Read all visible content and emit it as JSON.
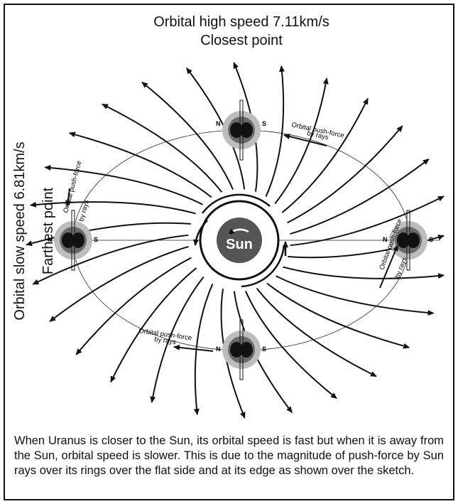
{
  "title": {
    "line1": "Orbital high speed 7.11km/s",
    "line2": "Closest point"
  },
  "side": {
    "line1": "Orbital slow speed 6.81km/s",
    "line2": "Farthest point"
  },
  "sun": "Sun",
  "planets": [
    {
      "n": "N",
      "s": "S"
    },
    {
      "n": "N",
      "s": "S"
    },
    {
      "n": "N",
      "s": "S"
    },
    {
      "n": "N",
      "s": "S"
    }
  ],
  "push_labels": [
    {
      "line1": "Orbital push-force",
      "line2": "by rays"
    },
    {
      "line1": "Orbital push-force",
      "line2": "by rays"
    },
    {
      "line1": "Orbital push-force",
      "line2": "by rays"
    },
    {
      "line1": "Orbital push-force",
      "line2": "by rays"
    }
  ],
  "caption": "When Uranus is closer to the Sun, its orbital speed is fast but when it is away from the Sun, orbital speed is slower. This is due to the magnitude of push-force by Sun rays over its rings over the flat side and at its edge as shown over the sketch."
}
